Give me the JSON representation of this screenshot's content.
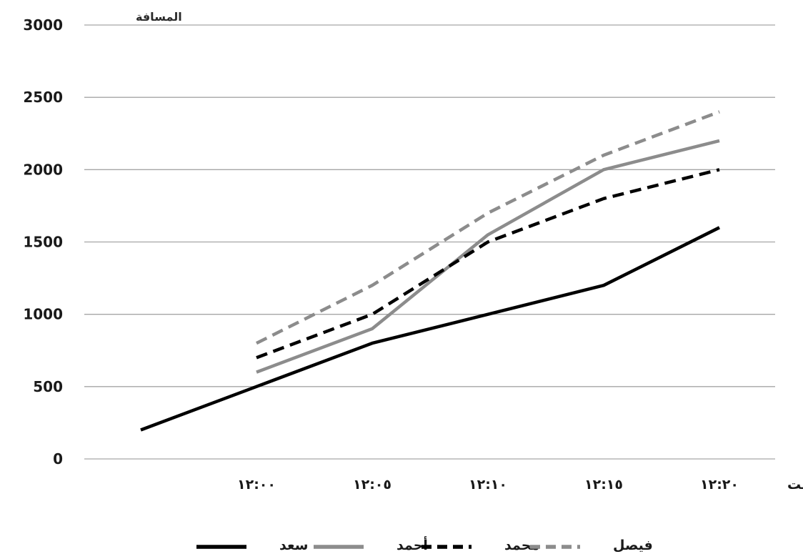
{
  "chart_data": {
    "type": "line",
    "categories": [
      "",
      "١٢:٠٠",
      "١٢:٠٥",
      "١٢:١٠",
      "١٢:١٥",
      "١٢:٢٠"
    ],
    "ylabel": "المسافة",
    "xlabel": "الوقت",
    "ylim": [
      0,
      3000
    ],
    "yticks": [
      0,
      500,
      1000,
      1500,
      2000,
      2500,
      3000
    ],
    "grid": true,
    "legend_position": "bottom",
    "series": [
      {
        "name": "سعد",
        "color": "#000000",
        "dash": "solid",
        "values": [
          200,
          500,
          800,
          1000,
          1200,
          1600
        ]
      },
      {
        "name": "أحمد",
        "color": "#8c8c8c",
        "dash": "solid",
        "values": [
          null,
          600,
          900,
          1550,
          2000,
          2200
        ]
      },
      {
        "name": "محمد",
        "color": "#000000",
        "dash": "dashed",
        "values": [
          null,
          700,
          1000,
          1500,
          1800,
          2000
        ]
      },
      {
        "name": "فيصل",
        "color": "#8c8c8c",
        "dash": "dashed",
        "values": [
          null,
          800,
          1200,
          1700,
          2100,
          2400
        ]
      }
    ],
    "legend_order": [
      "سعد",
      "أحمد",
      "محمد",
      "فيصل"
    ]
  }
}
